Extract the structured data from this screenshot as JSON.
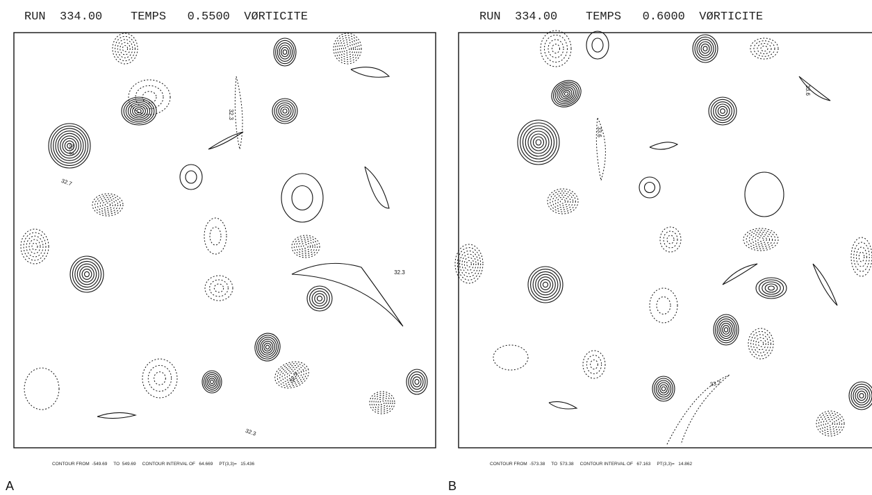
{
  "panels": [
    {
      "header": "RUN  334.00    TEMPS   0.5500  VØRTICITE",
      "footer": "CONTOUR FROM  -549.69     TO  549.69     CONTOUR INTERVAL OF   64.669     PT(3,3)=   15.436",
      "contour_labels": [
        "32.3",
        "32.7",
        "32.3",
        "32.3",
        "32.3",
        "32.3"
      ],
      "letter": "A"
    },
    {
      "header": "RUN  334.00    TEMPS   0.6000  VØRTICITE",
      "footer": "CONTOUR FROM  -573.38     TO  573.38     CONTOUR INTERVAL OF   67.163     PT(3,3)=   14.862",
      "contour_labels": [
        "33.6",
        "33.6",
        "33.7"
      ],
      "letter": "B"
    }
  ]
}
